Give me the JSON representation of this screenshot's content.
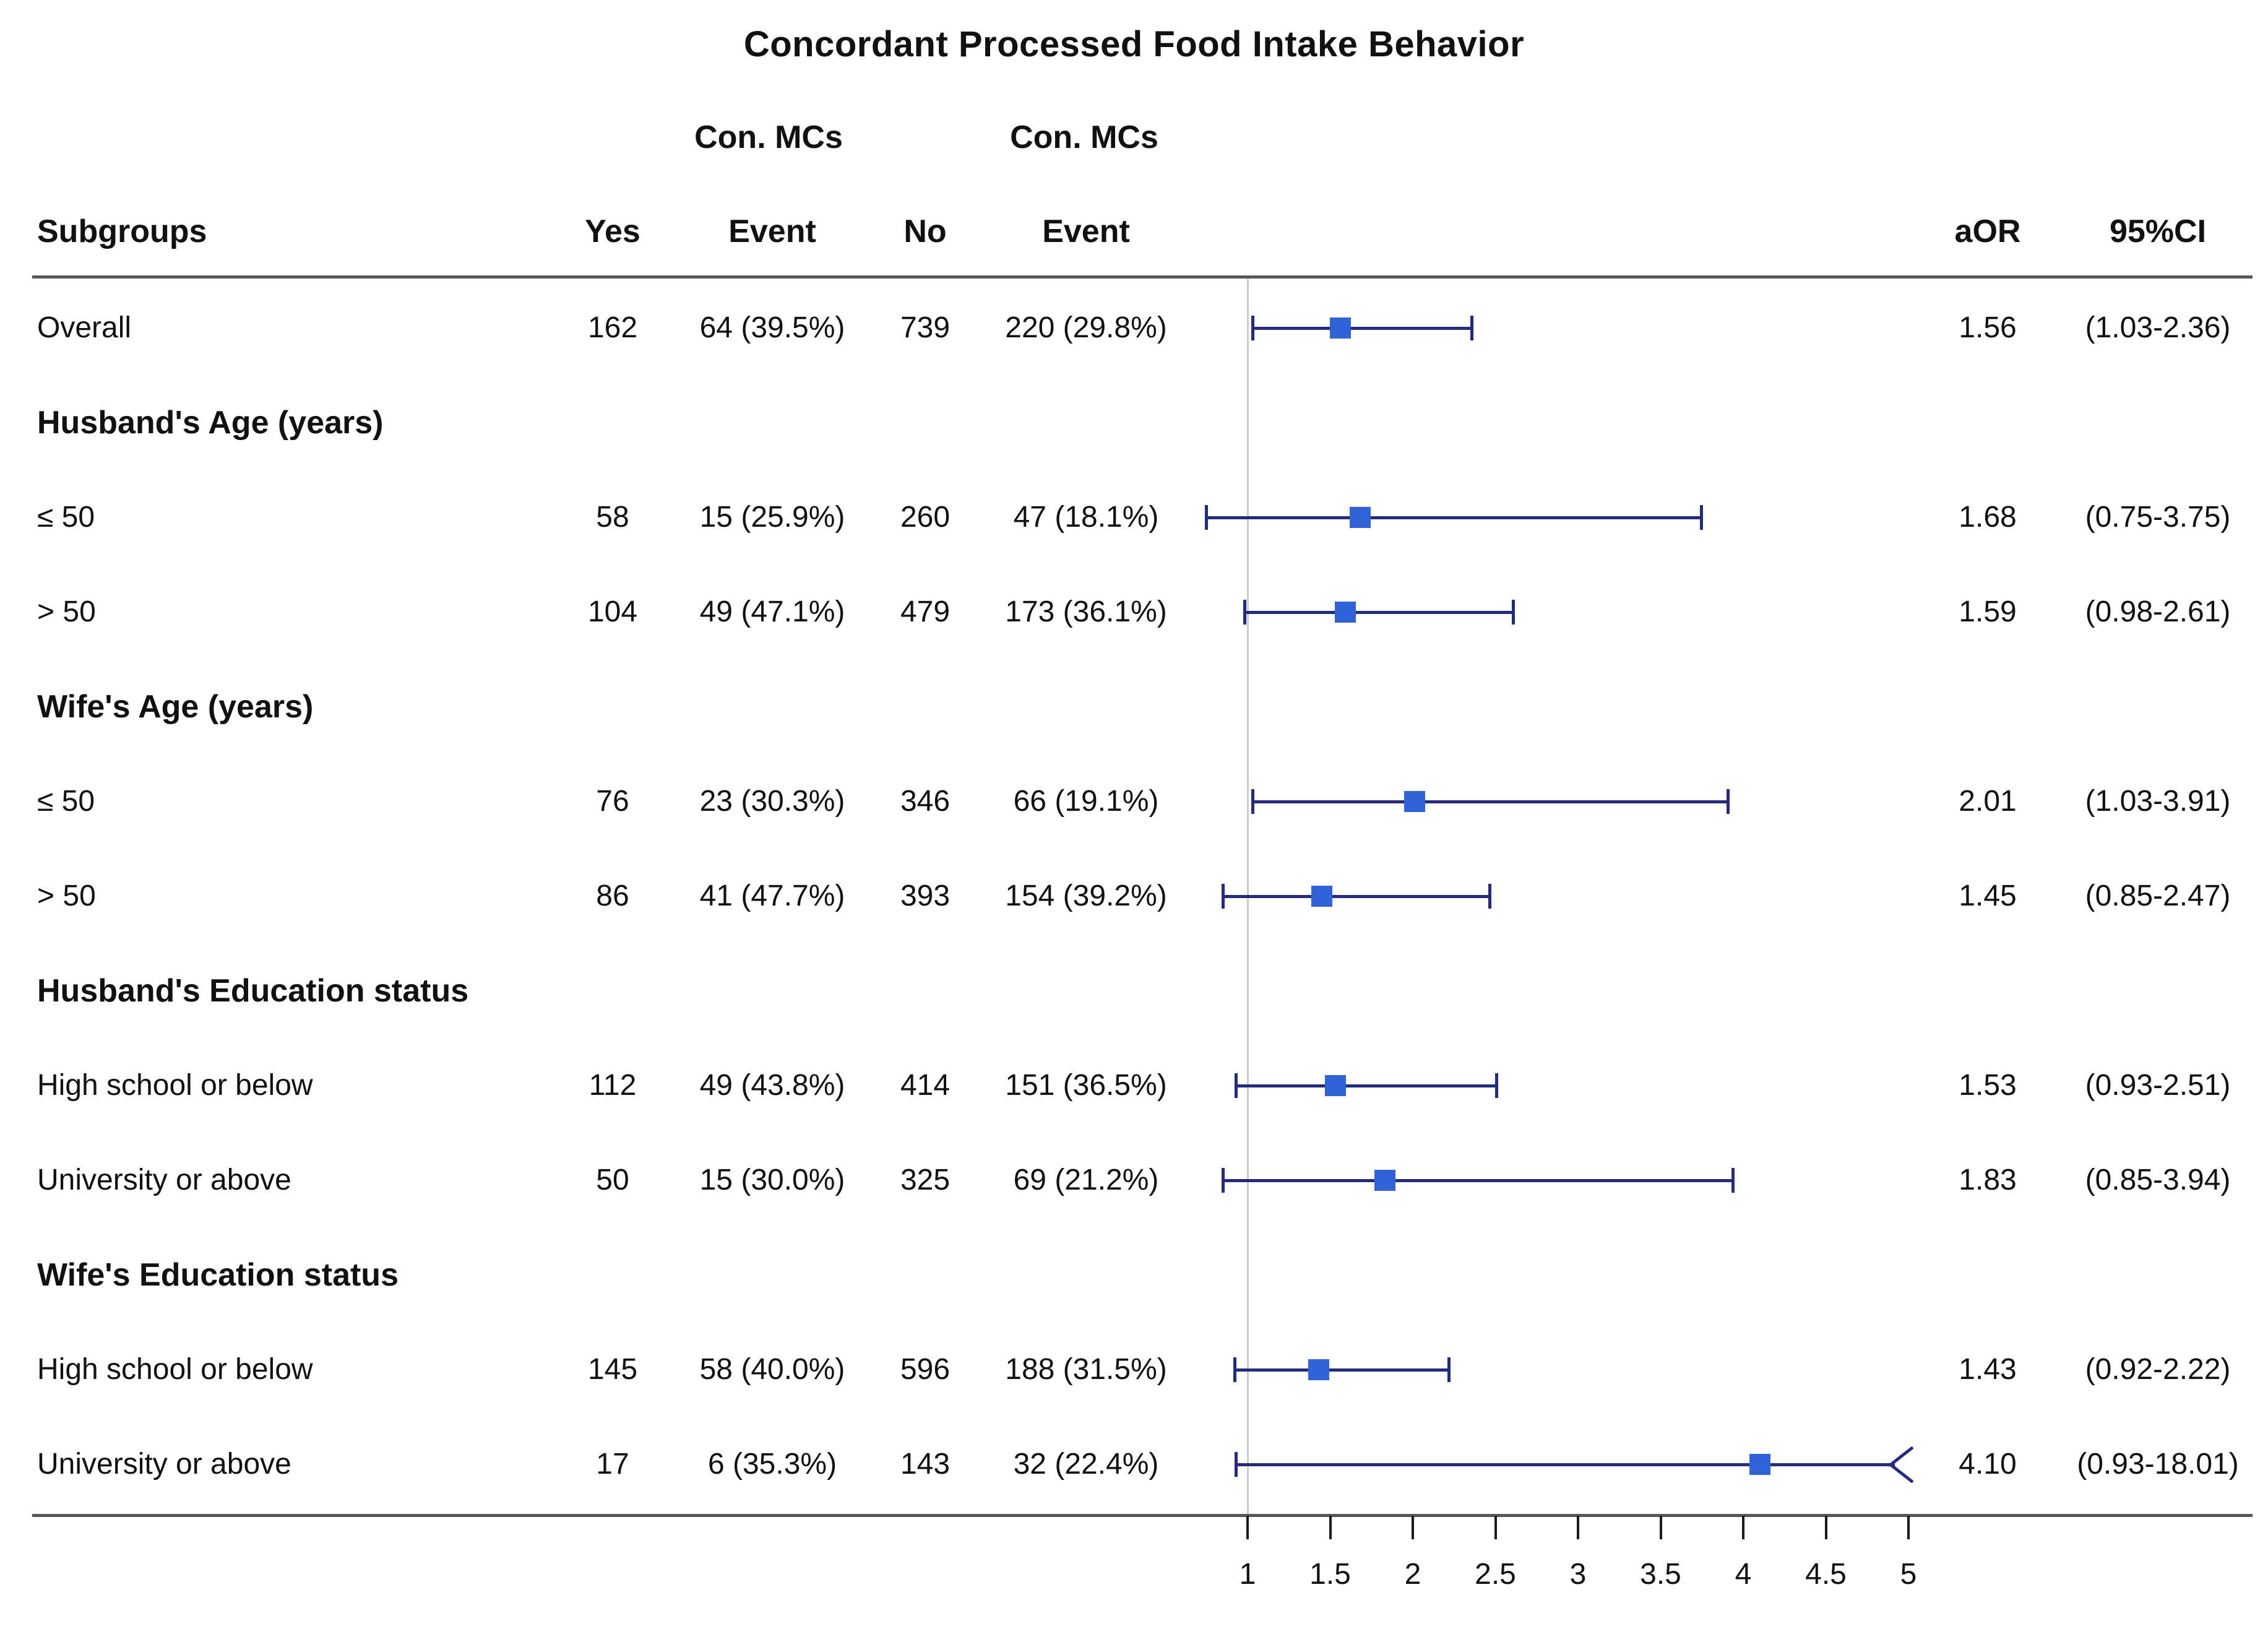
{
  "title": "Concordant Processed Food Intake Behavior",
  "header": {
    "subgroups": "Subgroups",
    "con_mcs_1": "Con. MCs",
    "con_mcs_2": "Con. MCs",
    "yes": "Yes",
    "event_1": "Event",
    "no": "No",
    "event_2": "Event",
    "aor": "aOR",
    "ci": "95%CI"
  },
  "chart_data": {
    "type": "scatter",
    "subtype": "forest-plot",
    "title": "Concordant Processed Food Intake Behavior",
    "xlabel": "",
    "ylabel": "",
    "xlim": [
      1,
      5
    ],
    "x_ticks": [
      1,
      1.5,
      2,
      2.5,
      3,
      3.5,
      4,
      4.5,
      5
    ],
    "reference_line": 1,
    "grid": false,
    "legend": "none",
    "marker_color": "#2f63d6",
    "ci_color": "#242a7d",
    "rows": [
      {
        "kind": "data",
        "label": "Overall",
        "yes": "162",
        "yes_event": "64 (39.5%)",
        "no": "739",
        "no_event": "220 (29.8%)",
        "aor": "1.56",
        "ci": "(1.03-2.36)",
        "est": 1.56,
        "lo": 1.03,
        "hi": 2.36,
        "arrow": false
      },
      {
        "kind": "group",
        "label": "Husband's Age (years)"
      },
      {
        "kind": "data",
        "label": "≤ 50",
        "yes": "58",
        "yes_event": "15 (25.9%)",
        "no": "260",
        "no_event": "47 (18.1%)",
        "aor": "1.68",
        "ci": "(0.75-3.75)",
        "est": 1.68,
        "lo": 0.75,
        "hi": 3.75,
        "arrow": false
      },
      {
        "kind": "data",
        "label": "> 50",
        "yes": "104",
        "yes_event": "49 (47.1%)",
        "no": "479",
        "no_event": "173 (36.1%)",
        "aor": "1.59",
        "ci": "(0.98-2.61)",
        "est": 1.59,
        "lo": 0.98,
        "hi": 2.61,
        "arrow": false
      },
      {
        "kind": "group",
        "label": "Wife's Age (years)"
      },
      {
        "kind": "data",
        "label": "≤ 50",
        "yes": "76",
        "yes_event": "23 (30.3%)",
        "no": "346",
        "no_event": "66 (19.1%)",
        "aor": "2.01",
        "ci": "(1.03-3.91)",
        "est": 2.01,
        "lo": 1.03,
        "hi": 3.91,
        "arrow": false
      },
      {
        "kind": "data",
        "label": "> 50",
        "yes": "86",
        "yes_event": "41 (47.7%)",
        "no": "393",
        "no_event": "154 (39.2%)",
        "aor": "1.45",
        "ci": "(0.85-2.47)",
        "est": 1.45,
        "lo": 0.85,
        "hi": 2.47,
        "arrow": false
      },
      {
        "kind": "group",
        "label": "Husband's Education status"
      },
      {
        "kind": "data",
        "label": "High school or below",
        "yes": "112",
        "yes_event": "49 (43.8%)",
        "no": "414",
        "no_event": "151 (36.5%)",
        "aor": "1.53",
        "ci": "(0.93-2.51)",
        "est": 1.53,
        "lo": 0.93,
        "hi": 2.51,
        "arrow": false
      },
      {
        "kind": "data",
        "label": "University or above",
        "yes": "50",
        "yes_event": "15 (30.0%)",
        "no": "325",
        "no_event": "69 (21.2%)",
        "aor": "1.83",
        "ci": "(0.85-3.94)",
        "est": 1.83,
        "lo": 0.85,
        "hi": 3.94,
        "arrow": false
      },
      {
        "kind": "group",
        "label": "Wife's Education status"
      },
      {
        "kind": "data",
        "label": "High school or below",
        "yes": "145",
        "yes_event": "58 (40.0%)",
        "no": "596",
        "no_event": "188 (31.5%)",
        "aor": "1.43",
        "ci": "(0.92-2.22)",
        "est": 1.43,
        "lo": 0.92,
        "hi": 2.22,
        "arrow": false
      },
      {
        "kind": "data",
        "label": "University or above",
        "yes": "17",
        "yes_event": "6 (35.3%)",
        "no": "143",
        "no_event": "32 (22.4%)",
        "aor": "4.10",
        "ci": "(0.93-18.01)",
        "est": 4.1,
        "lo": 0.93,
        "hi": 18.01,
        "arrow": true
      }
    ]
  }
}
